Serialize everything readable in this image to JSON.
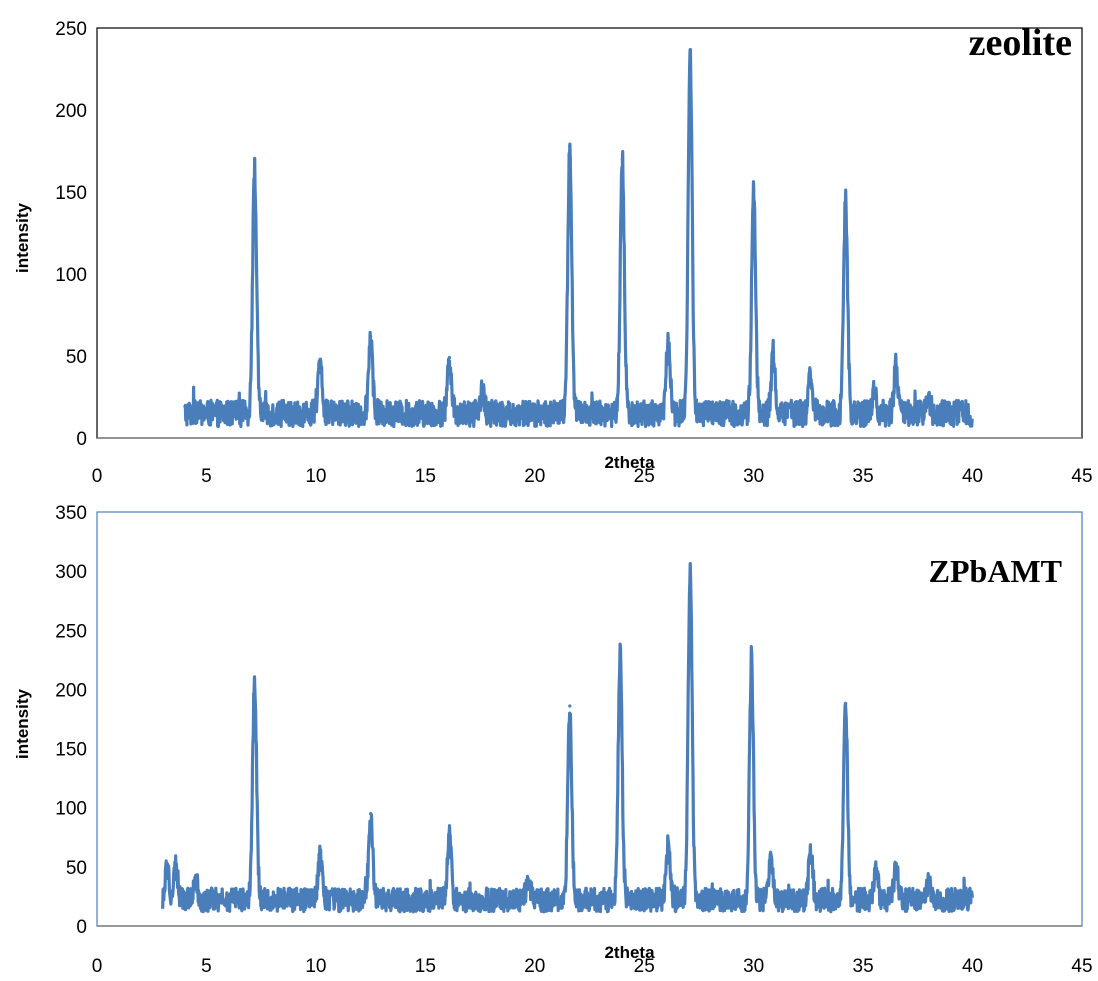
{
  "colors": {
    "series": "#4A7EBB",
    "plot_border_top": "#000000",
    "plot_border_bottom": "#4A7EBB",
    "axis": "#808080"
  },
  "chart_data": [
    {
      "type": "line",
      "title": "zeolite",
      "xlabel": "2theta",
      "ylabel": "intensity",
      "xlim": [
        0,
        45
      ],
      "ylim": [
        0,
        250
      ],
      "xticks": [
        "0",
        "5",
        "10",
        "15",
        "20",
        "25",
        "30",
        "35",
        "40",
        "45"
      ],
      "yticks": [
        "0",
        "50",
        "100",
        "150",
        "200",
        "250"
      ],
      "grid": false,
      "legend": "none",
      "baseline": {
        "x_start": 4,
        "x_end": 40,
        "level": 15,
        "noise": 8
      },
      "peaks": [
        {
          "x": 7.2,
          "y": 163
        },
        {
          "x": 10.2,
          "y": 48
        },
        {
          "x": 12.5,
          "y": 62
        },
        {
          "x": 16.1,
          "y": 49
        },
        {
          "x": 17.6,
          "y": 29
        },
        {
          "x": 21.6,
          "y": 178
        },
        {
          "x": 24.0,
          "y": 170
        },
        {
          "x": 26.1,
          "y": 61
        },
        {
          "x": 27.1,
          "y": 234
        },
        {
          "x": 30.0,
          "y": 152
        },
        {
          "x": 30.9,
          "y": 52
        },
        {
          "x": 32.6,
          "y": 38
        },
        {
          "x": 34.2,
          "y": 144
        },
        {
          "x": 35.5,
          "y": 28
        },
        {
          "x": 36.5,
          "y": 44
        },
        {
          "x": 38.0,
          "y": 24
        }
      ]
    },
    {
      "type": "line",
      "title": "ZPbAMT",
      "xlabel": "2theta",
      "ylabel": "intensity",
      "xlim": [
        0,
        45
      ],
      "ylim": [
        0,
        350
      ],
      "xticks": [
        "0",
        "5",
        "10",
        "15",
        "20",
        "25",
        "30",
        "35",
        "40",
        "45"
      ],
      "yticks": [
        "0",
        "50",
        "100",
        "150",
        "200",
        "250",
        "300",
        "350"
      ],
      "grid": false,
      "legend": "none",
      "baseline": {
        "x_start": 3,
        "x_end": 40,
        "level": 22,
        "noise": 10
      },
      "peaks": [
        {
          "x": 3.2,
          "y": 48
        },
        {
          "x": 3.6,
          "y": 50
        },
        {
          "x": 4.5,
          "y": 42
        },
        {
          "x": 7.2,
          "y": 209
        },
        {
          "x": 10.2,
          "y": 61
        },
        {
          "x": 12.5,
          "y": 95
        },
        {
          "x": 16.1,
          "y": 77
        },
        {
          "x": 19.7,
          "y": 40
        },
        {
          "x": 21.6,
          "y": 186
        },
        {
          "x": 23.9,
          "y": 229
        },
        {
          "x": 26.1,
          "y": 71
        },
        {
          "x": 27.1,
          "y": 302
        },
        {
          "x": 29.9,
          "y": 222
        },
        {
          "x": 30.8,
          "y": 60
        },
        {
          "x": 32.6,
          "y": 63
        },
        {
          "x": 34.2,
          "y": 188
        },
        {
          "x": 35.6,
          "y": 49
        },
        {
          "x": 36.5,
          "y": 51
        },
        {
          "x": 38.0,
          "y": 35
        }
      ]
    }
  ]
}
